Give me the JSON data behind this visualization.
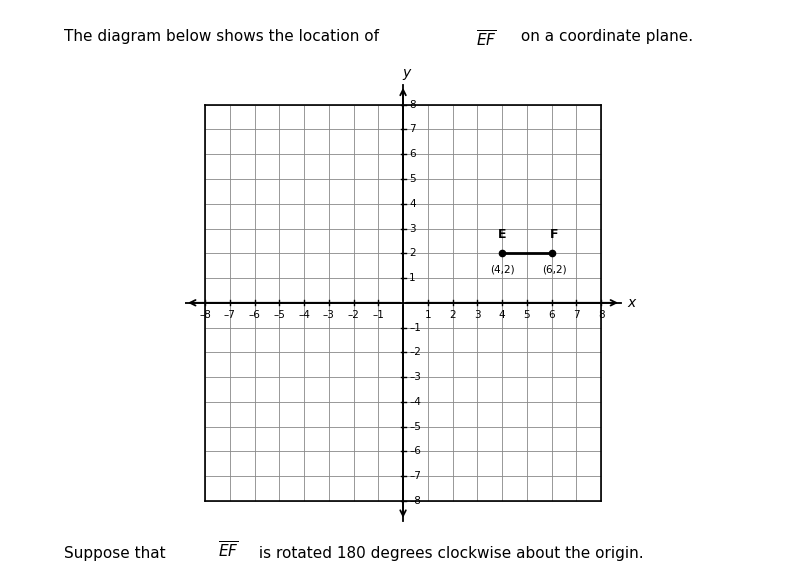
{
  "title_plain": "The diagram below shows the location of ",
  "title_EF": "EF",
  "title_suffix": " on a coordinate plane.",
  "subtitle_plain": "Suppose that ",
  "subtitle_EF": "EF",
  "subtitle_suffix": " is rotated 180 degrees clockwise about the origin.",
  "E": [
    4,
    2
  ],
  "F": [
    6,
    2
  ],
  "grid_range": 8,
  "line_color": "#000000",
  "point_color": "#000000",
  "background_color": "#ffffff",
  "grid_color": "#888888",
  "axis_color": "#000000",
  "grid_lw": 0.6,
  "border_lw": 1.2
}
